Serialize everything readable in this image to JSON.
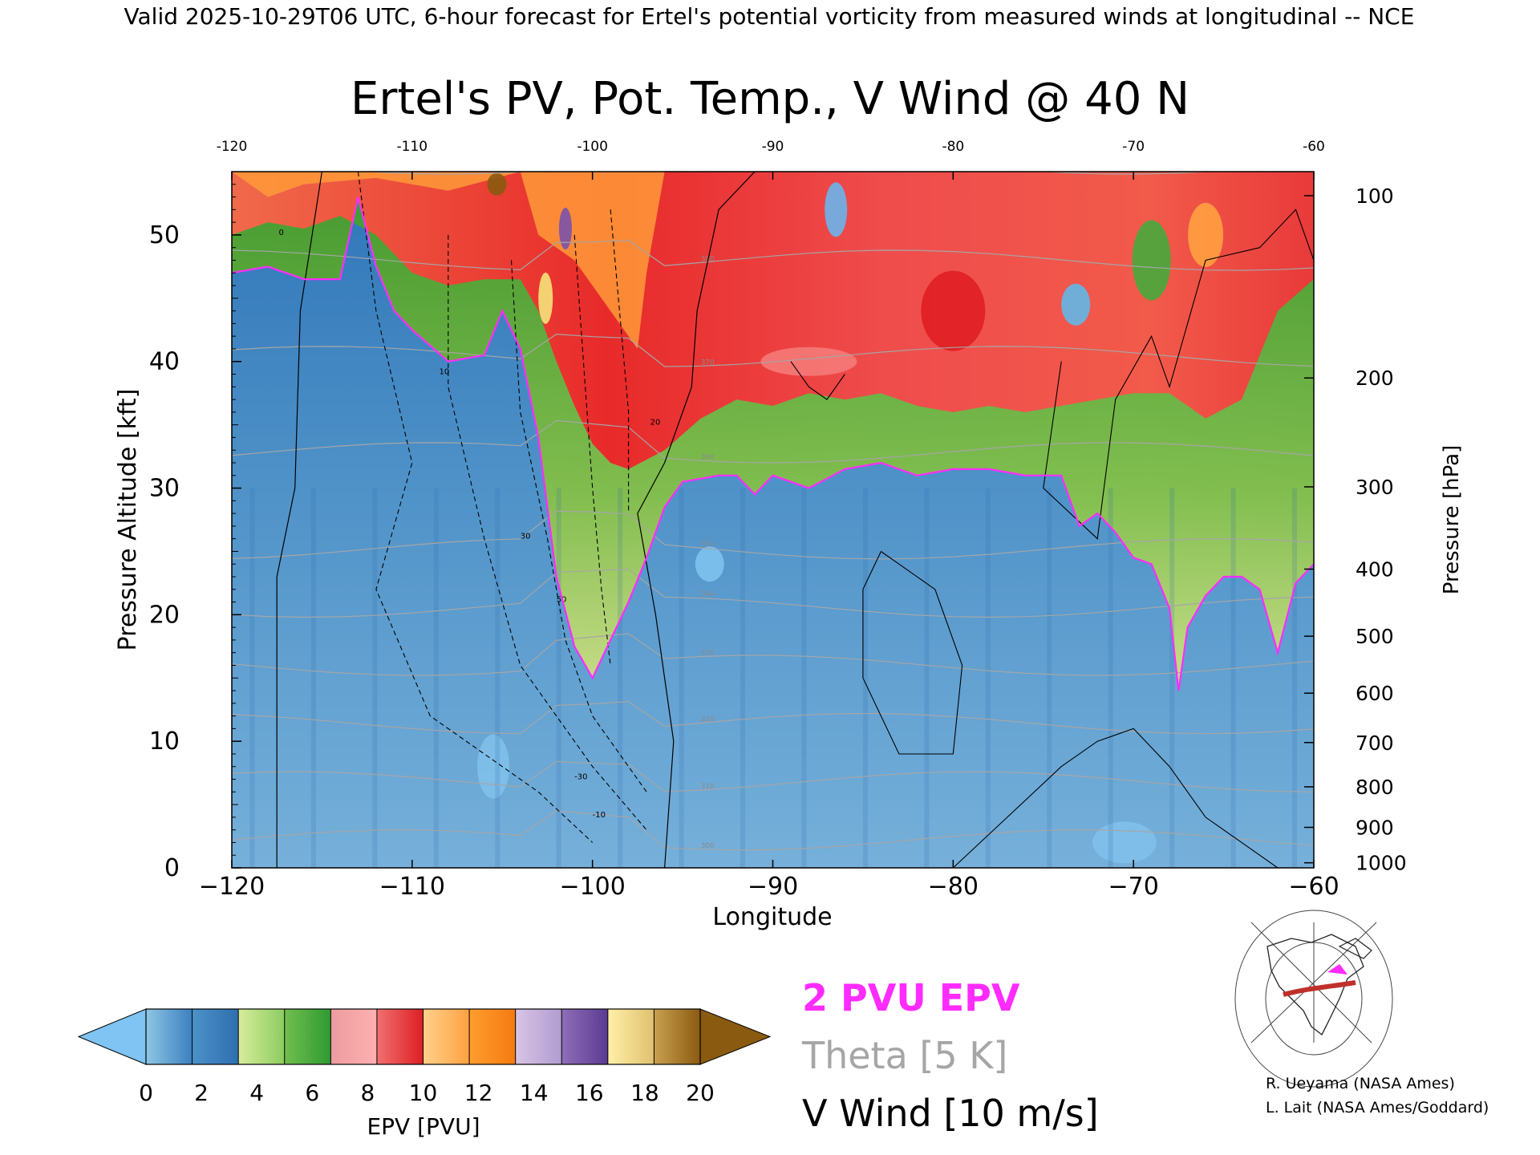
{
  "header": {
    "valid_line": "Valid 2025-10-29T06 UTC, 6-hour forecast for Ertel's potential vorticity from measured winds at longitudinal -- NCE"
  },
  "chart_data": {
    "type": "heatmap",
    "title": "Ertel's PV, Pot. Temp., V Wind @ 40 N",
    "xlabel": "Longitude",
    "ylabel_left": "Pressure Altitude [kft]",
    "ylabel_right": "Pressure [hPa]",
    "xlim": [
      -120,
      -60
    ],
    "ylim": [
      0,
      55
    ],
    "x_ticks": [
      -120,
      -110,
      -100,
      -90,
      -80,
      -70,
      -60
    ],
    "x_tick_labels": [
      "−120",
      "−110",
      "−100",
      "−90",
      "−80",
      "−70",
      "−60"
    ],
    "top_tick_labels": [
      "-120",
      "-110",
      "-100",
      "-90",
      "-80",
      "-70",
      "-60"
    ],
    "y_ticks": [
      0,
      10,
      20,
      30,
      40,
      50
    ],
    "y_tick_labels": [
      "0",
      "10",
      "20",
      "30",
      "40",
      "50"
    ],
    "pressure_ticks": [
      {
        "hPa": 100,
        "kft": 53.1,
        "label": "100"
      },
      {
        "hPa": 200,
        "kft": 38.7,
        "label": "200"
      },
      {
        "hPa": 300,
        "kft": 30.1,
        "label": "300"
      },
      {
        "hPa": 400,
        "kft": 23.6,
        "label": "400"
      },
      {
        "hPa": 500,
        "kft": 18.3,
        "label": "500"
      },
      {
        "hPa": 600,
        "kft": 13.8,
        "label": "600"
      },
      {
        "hPa": 700,
        "kft": 9.9,
        "label": "700"
      },
      {
        "hPa": 800,
        "kft": 6.4,
        "label": "800"
      },
      {
        "hPa": 900,
        "kft": 3.2,
        "label": "900"
      },
      {
        "hPa": 1000,
        "kft": 0.4,
        "label": "1000"
      }
    ],
    "epv_2pvu_boundary_kft": [
      [
        -120,
        47.0
      ],
      [
        -118,
        47.5
      ],
      [
        -116,
        46.5
      ],
      [
        -114,
        46.5
      ],
      [
        -113,
        53.0
      ],
      [
        -112,
        47.5
      ],
      [
        -111,
        44.0
      ],
      [
        -110,
        42.5
      ],
      [
        -108,
        40.0
      ],
      [
        -106,
        40.5
      ],
      [
        -105,
        44.0
      ],
      [
        -104,
        41.0
      ],
      [
        -103,
        34.0
      ],
      [
        -102,
        23.0
      ],
      [
        -101,
        17.5
      ],
      [
        -100,
        15.0
      ],
      [
        -99,
        18.0
      ],
      [
        -98,
        21.0
      ],
      [
        -97,
        24.5
      ],
      [
        -96,
        28.5
      ],
      [
        -95,
        30.5
      ],
      [
        -93,
        31.0
      ],
      [
        -92,
        31.0
      ],
      [
        -91,
        29.5
      ],
      [
        -90,
        31.0
      ],
      [
        -88,
        30.0
      ],
      [
        -86,
        31.5
      ],
      [
        -84,
        32.0
      ],
      [
        -82,
        31.0
      ],
      [
        -80,
        31.5
      ],
      [
        -78,
        31.5
      ],
      [
        -76,
        31.0
      ],
      [
        -74,
        31.0
      ],
      [
        -73,
        27.0
      ],
      [
        -72,
        28.0
      ],
      [
        -71,
        26.5
      ],
      [
        -70,
        24.5
      ],
      [
        -69,
        24.0
      ],
      [
        -68,
        20.5
      ],
      [
        -67.5,
        14.0
      ],
      [
        -67,
        19.0
      ],
      [
        -66,
        21.5
      ],
      [
        -65,
        23.0
      ],
      [
        -64,
        23.0
      ],
      [
        -63,
        22.0
      ],
      [
        -62,
        17.0
      ],
      [
        -61,
        22.5
      ],
      [
        -60,
        24.0
      ]
    ],
    "tropopause_layer_top_kft": [
      [
        -120,
        50.0
      ],
      [
        -118,
        51.0
      ],
      [
        -116,
        50.5
      ],
      [
        -114,
        51.5
      ],
      [
        -112,
        50.0
      ],
      [
        -110,
        47.0
      ],
      [
        -108,
        46.0
      ],
      [
        -106,
        46.5
      ],
      [
        -104,
        46.5
      ],
      [
        -103,
        44.0
      ],
      [
        -102,
        40.0
      ],
      [
        -101,
        36.5
      ],
      [
        -100,
        33.5
      ],
      [
        -99,
        32.0
      ],
      [
        -98,
        31.5
      ],
      [
        -96,
        33.0
      ],
      [
        -94,
        35.5
      ],
      [
        -92,
        37.0
      ],
      [
        -90,
        36.5
      ],
      [
        -88,
        37.5
      ],
      [
        -86,
        37.0
      ],
      [
        -84,
        37.5
      ],
      [
        -82,
        36.5
      ],
      [
        -80,
        36.0
      ],
      [
        -78,
        36.5
      ],
      [
        -76,
        36.0
      ],
      [
        -74,
        36.5
      ],
      [
        -72,
        37.0
      ],
      [
        -70,
        37.5
      ],
      [
        -68,
        37.5
      ],
      [
        -66,
        35.5
      ],
      [
        -64,
        37.0
      ],
      [
        -62,
        44.0
      ],
      [
        -60,
        46.5
      ]
    ],
    "theta_isentropes_K": [
      300,
      310,
      320,
      330,
      340,
      350,
      360,
      370,
      380,
      390
    ],
    "theta_labels": [
      "300",
      "310",
      "320",
      "330",
      "340",
      "350",
      "360",
      "370",
      "380",
      "390"
    ],
    "v_wind_contour_labels": [
      "0",
      "10",
      "-10",
      "20",
      "30",
      "-30",
      "50"
    ],
    "v_wind_zero_line_kft": [
      [
        -117.5,
        0
      ],
      [
        -117.5,
        23
      ],
      [
        -116.5,
        30
      ],
      [
        -116.2,
        44
      ],
      [
        -115,
        55
      ]
    ],
    "v_wind_zero_line_b_kft": [
      [
        -96,
        0
      ],
      [
        -95.5,
        10
      ],
      [
        -96.5,
        20
      ],
      [
        -97.5,
        28
      ],
      [
        -96,
        32
      ],
      [
        -94.5,
        38
      ],
      [
        -94.2,
        44
      ],
      [
        -93,
        52
      ],
      [
        -91,
        55
      ]
    ],
    "colorbar": {
      "label": "EPV [PVU]",
      "ticks": [
        0,
        2,
        4,
        6,
        8,
        10,
        12,
        14,
        16,
        18,
        20
      ],
      "tick_labels": [
        "0",
        "2",
        "4",
        "6",
        "8",
        "10",
        "12",
        "14",
        "16",
        "18",
        "20"
      ],
      "under_color": "#7fc4f2",
      "over_color": "#8a5a10",
      "segments": [
        [
          "#8fc6e4",
          "#3a7fbf"
        ],
        [
          "#4c92c8",
          "#2e6eb0"
        ],
        [
          "#d8ec9c",
          "#8ccc60"
        ],
        [
          "#72be4e",
          "#2e9a32"
        ],
        [
          "#ec9ca0",
          "#ffb0b0"
        ],
        [
          "#f07070",
          "#de1e24"
        ],
        [
          "#ffd08a",
          "#ffa040"
        ],
        [
          "#ff9d2e",
          "#f47a10"
        ],
        [
          "#d8c4e4",
          "#b09cd0"
        ],
        [
          "#8f6fb8",
          "#5a3a90"
        ],
        [
          "#fff0a8",
          "#e0c070"
        ],
        [
          "#c8a050",
          "#8a5a10"
        ]
      ]
    },
    "legend": [
      {
        "label": "2 PVU EPV",
        "color": "#ff2bff"
      },
      {
        "label": "Theta [5 K]",
        "color": "#a6a6a6"
      },
      {
        "label": "V Wind [10 m/s]",
        "color": "#000000"
      }
    ],
    "colors": {
      "troposphere": "#6aa6d4",
      "troposphere_dark": "#3c80c0",
      "transition_green": "#46aa3c",
      "stratosphere_red": "#ec3a3a",
      "upper_orange": "#ffa040",
      "pv_contour": "#ff2bff"
    }
  },
  "credits": {
    "line1": "R. Ueyama (NASA Ames)",
    "line2": "L. Lait (NASA Ames/Goddard)"
  },
  "inset_map": {
    "icon": "north-america-map-icon",
    "track_color": "#c0302a"
  }
}
